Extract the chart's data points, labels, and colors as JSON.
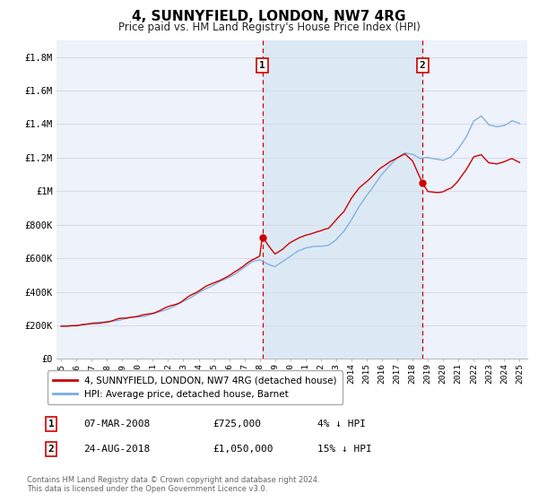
{
  "title": "4, SUNNYFIELD, LONDON, NW7 4RG",
  "subtitle": "Price paid vs. HM Land Registry's House Price Index (HPI)",
  "background_color": "#ffffff",
  "plot_bg_color": "#eef2fa",
  "grid_color": "#d8dce8",
  "ylim": [
    0,
    1900000
  ],
  "xlim_start": 1994.7,
  "xlim_end": 2025.5,
  "yticks": [
    0,
    200000,
    400000,
    600000,
    800000,
    1000000,
    1200000,
    1400000,
    1600000,
    1800000
  ],
  "ytick_labels": [
    "£0",
    "£200K",
    "£400K",
    "£600K",
    "£800K",
    "£1M",
    "£1.2M",
    "£1.4M",
    "£1.6M",
    "£1.8M"
  ],
  "xtick_years": [
    1995,
    1996,
    1997,
    1998,
    1999,
    2000,
    2001,
    2002,
    2003,
    2004,
    2005,
    2006,
    2007,
    2008,
    2009,
    2010,
    2011,
    2012,
    2013,
    2014,
    2015,
    2016,
    2017,
    2018,
    2019,
    2020,
    2021,
    2022,
    2023,
    2024,
    2025
  ],
  "sale1_x": 2008.17,
  "sale1_y": 725000,
  "sale2_x": 2018.645,
  "sale2_y": 1050000,
  "sale1_label": "1",
  "sale2_label": "2",
  "sale1_date": "07-MAR-2008",
  "sale1_price": "£725,000",
  "sale1_pct": "4% ↓ HPI",
  "sale2_date": "24-AUG-2018",
  "sale2_price": "£1,050,000",
  "sale2_pct": "15% ↓ HPI",
  "line1_color": "#cc0000",
  "line2_color": "#7aabdc",
  "marker_color": "#cc0000",
  "dashed_color": "#cc0000",
  "shade_color": "#dce9f5",
  "legend1_label": "4, SUNNYFIELD, LONDON, NW7 4RG (detached house)",
  "legend2_label": "HPI: Average price, detached house, Barnet",
  "footer1": "Contains HM Land Registry data © Crown copyright and database right 2024.",
  "footer2": "This data is licensed under the Open Government Licence v3.0."
}
